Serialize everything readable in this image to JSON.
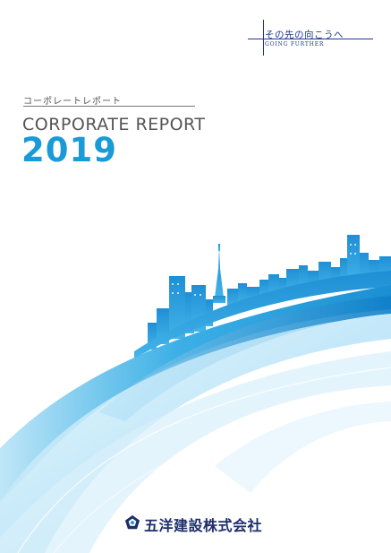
{
  "tagline": {
    "jp": "その先の向こうへ",
    "en": "GOING FURTHER"
  },
  "report": {
    "subtitle": "コーポレートレポート",
    "title": "CORPORATE REPORT",
    "year": "2019"
  },
  "company": {
    "name": "五洋建設株式会社",
    "logo_icon": "penta-ocean-logo-icon"
  },
  "colors": {
    "brand_navy": "#1d2f6b",
    "accent_blue": "#1a9ad6",
    "tagline_blue": "#1f3a8a",
    "text_gray": "#555555"
  }
}
